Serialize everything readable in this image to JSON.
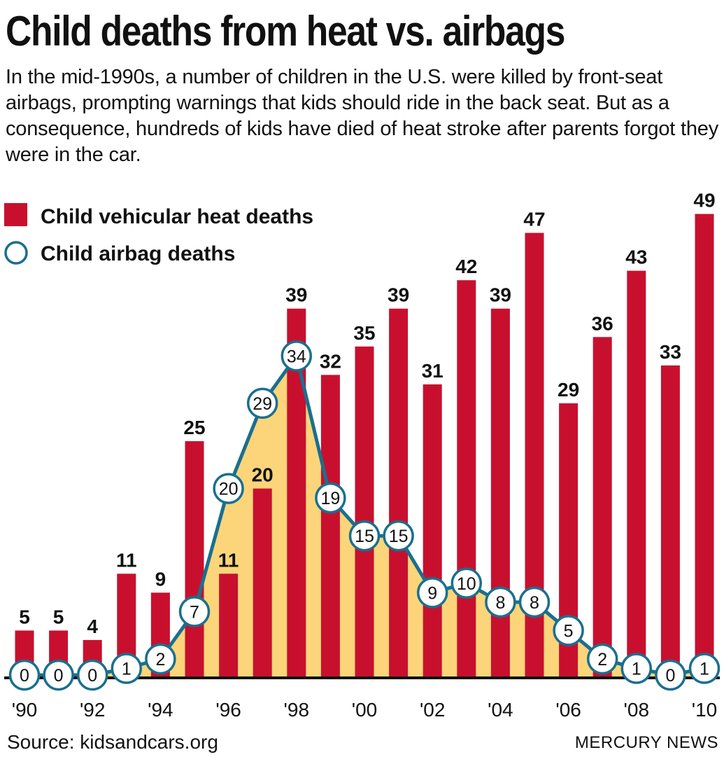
{
  "title": "Child deaths from heat vs. airbags",
  "subtitle": "In the mid-1990s, a number of children in the U.S. were killed by front-seat airbags, prompting warnings that kids should ride in the back seat. But as a consequence, hundreds of kids have died of heat stroke after parents forgot they were in the car.",
  "source": "Source: kidsandcars.org",
  "credit": "MERCURY NEWS",
  "colors": {
    "bars": "#c8102e",
    "line": "#1a6f8f",
    "area": "#fcd57a",
    "axis": "#111111"
  },
  "chart_data": {
    "type": "bar",
    "title": "Child deaths from heat vs. airbags",
    "categories": [
      "1990",
      "1991",
      "1992",
      "1993",
      "1994",
      "1995",
      "1996",
      "1997",
      "1998",
      "1999",
      "2000",
      "2001",
      "2002",
      "2003",
      "2004",
      "2005",
      "2006",
      "2007",
      "2008",
      "2009",
      "2010"
    ],
    "tick_labels": [
      "'90",
      "'92",
      "'94",
      "'96",
      "'98",
      "'00",
      "'02",
      "'04",
      "'06",
      "'08",
      "'10"
    ],
    "series": [
      {
        "name": "Child vehicular heat deaths",
        "kind": "bar",
        "values": [
          5,
          5,
          4,
          11,
          9,
          25,
          11,
          20,
          39,
          32,
          35,
          39,
          31,
          42,
          39,
          47,
          29,
          36,
          43,
          33,
          49
        ]
      },
      {
        "name": "Child airbag deaths",
        "kind": "line",
        "values": [
          0,
          0,
          0,
          1,
          2,
          7,
          20,
          29,
          34,
          19,
          15,
          15,
          9,
          10,
          8,
          8,
          5,
          2,
          1,
          0,
          1
        ]
      }
    ],
    "legend": [
      "Child vehicular heat deaths",
      "Child airbag deaths"
    ],
    "legend_position": "top-left",
    "xlabel": "",
    "ylabel": "",
    "ylim": [
      0,
      50
    ],
    "grid": false
  }
}
